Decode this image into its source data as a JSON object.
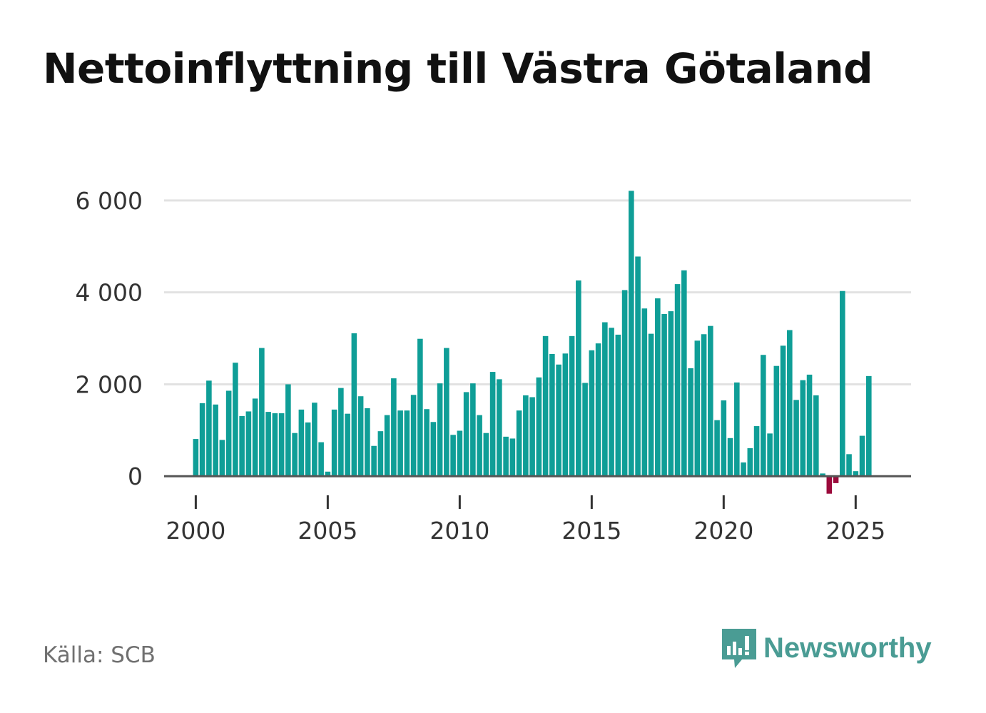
{
  "chart_data": {
    "type": "bar",
    "title": "Nettoinflyttning till Västra Götaland",
    "xlabel": "",
    "ylabel": "",
    "x_start": 2000.0,
    "x_step": 0.25,
    "x_range": [
      1998.8,
      2027.1
    ],
    "ylim": [
      -400,
      6200
    ],
    "y_ticks": [
      0,
      2000,
      4000,
      6000
    ],
    "y_tick_labels": [
      "0",
      "2 000",
      "4 000",
      "6 000"
    ],
    "x_ticks": [
      2000,
      2005,
      2010,
      2015,
      2020,
      2025
    ],
    "x_tick_labels": [
      "2000",
      "2005",
      "2010",
      "2015",
      "2020",
      "2025"
    ],
    "positive_color": "#0f9e97",
    "negative_color": "#9b0a3b",
    "values": [
      810,
      1590,
      2080,
      1560,
      790,
      1860,
      2470,
      1310,
      1410,
      1690,
      2790,
      1400,
      1370,
      1370,
      2000,
      940,
      1450,
      1170,
      1600,
      740,
      100,
      1450,
      1920,
      1360,
      3110,
      1740,
      1480,
      660,
      980,
      1330,
      2130,
      1430,
      1430,
      1770,
      2990,
      1460,
      1180,
      2020,
      2790,
      900,
      990,
      1830,
      2020,
      1330,
      940,
      2270,
      2110,
      860,
      820,
      1430,
      1760,
      1720,
      2150,
      3050,
      2660,
      2430,
      2670,
      3050,
      4260,
      2030,
      2740,
      2890,
      3350,
      3230,
      3080,
      4050,
      6210,
      4780,
      3650,
      3100,
      3870,
      3530,
      3590,
      4180,
      4480,
      2350,
      2950,
      3090,
      3270,
      1220,
      1650,
      830,
      2040,
      300,
      610,
      1090,
      2640,
      930,
      2400,
      2840,
      3180,
      1660,
      2090,
      2210,
      1760,
      60,
      -380,
      -150,
      4030,
      480,
      110,
      880,
      2180
    ]
  },
  "footer": {
    "source": "Källa: SCB",
    "brand": "Newsworthy"
  },
  "colors": {
    "brand": "#4a9c94",
    "grid": "#e2e2e2",
    "axis": "#555555",
    "tick_text": "#333333"
  }
}
